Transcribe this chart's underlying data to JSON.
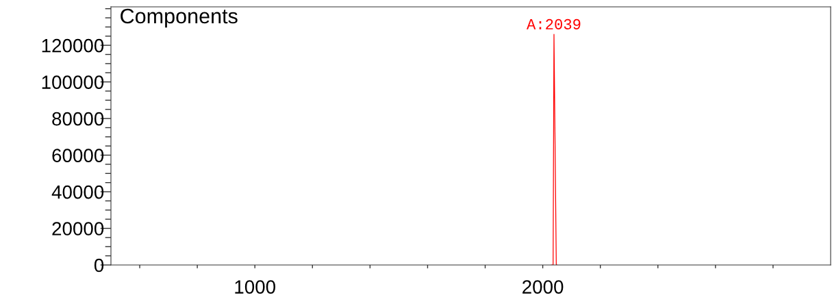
{
  "chart_data": {
    "type": "line",
    "title": "Components",
    "series": [
      {
        "color": "#ff0000",
        "x": [
          2030,
          2036,
          2039,
          2047,
          2050
        ],
        "values": [
          0,
          0,
          126000,
          0,
          0
        ]
      }
    ],
    "annotations": [
      {
        "text": "A:2039",
        "x": 2039,
        "y": 126000
      }
    ],
    "xlim": [
      500,
      3000
    ],
    "xticks": [
      {
        "value": 600,
        "label": null
      },
      {
        "value": 800,
        "label": null
      },
      1000,
      {
        "value": 1200,
        "label": null
      },
      {
        "value": 1400,
        "label": null
      },
      {
        "value": 1600,
        "label": null
      },
      {
        "value": 1800,
        "label": null
      },
      2000,
      {
        "value": 2200,
        "label": null
      },
      {
        "value": 2400,
        "label": null
      },
      {
        "value": 2600,
        "label": null
      },
      {
        "value": 2800,
        "label": null
      }
    ],
    "ylim": [
      0,
      141000
    ],
    "yticks": [
      0,
      {
        "value": 5000,
        "label": null
      },
      {
        "value": 10000,
        "label": null
      },
      {
        "value": 15000,
        "label": null
      },
      20000,
      {
        "value": 25000,
        "label": null
      },
      {
        "value": 30000,
        "label": null
      },
      {
        "value": 35000,
        "label": null
      },
      40000,
      {
        "value": 45000,
        "label": null
      },
      {
        "value": 50000,
        "label": null
      },
      {
        "value": 55000,
        "label": null
      },
      60000,
      {
        "value": 65000,
        "label": null
      },
      {
        "value": 70000,
        "label": null
      },
      {
        "value": 75000,
        "label": null
      },
      80000,
      {
        "value": 85000,
        "label": null
      },
      {
        "value": 90000,
        "label": null
      },
      {
        "value": 95000,
        "label": null
      },
      100000,
      {
        "value": 105000,
        "label": null
      },
      {
        "value": 110000,
        "label": null
      },
      {
        "value": 115000,
        "label": null
      },
      120000,
      {
        "value": 125000,
        "label": null
      },
      {
        "value": 130000,
        "label": null
      },
      {
        "value": 135000,
        "label": null
      },
      {
        "value": 140000,
        "label": null
      }
    ],
    "grid": false,
    "legend": false
  }
}
